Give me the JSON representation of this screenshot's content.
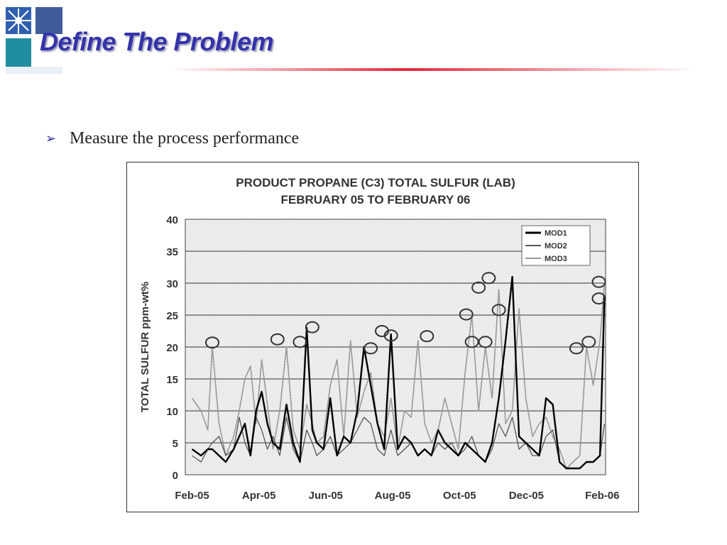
{
  "slide": {
    "title": "Define The Problem",
    "bullet_icon": "arrow-bullet-icon",
    "bullet_text": "Measure the process performance",
    "accent_color": "#3333aa",
    "rule_color": "#e3283c"
  },
  "chart_data": {
    "type": "line",
    "title": "PRODUCT PROPANE (C3) TOTAL SULFUR (LAB)",
    "subtitle": "FEBRUARY 05 TO FEBRUARY 06",
    "ylabel": "TOTAL SULFUR  ppm-wt%",
    "xlabel": "",
    "ylim": [
      0,
      40
    ],
    "yticks": [
      0,
      5,
      10,
      15,
      20,
      25,
      30,
      35,
      40
    ],
    "xticks": [
      "Feb-05",
      "Apr-05",
      "Jun-05",
      "Aug-05",
      "Oct-05",
      "Dec-05",
      "Feb-06"
    ],
    "grid": true,
    "legend_position": "top-right",
    "x_days": [
      0,
      8,
      14,
      18,
      24,
      30,
      37,
      42,
      47,
      52,
      57,
      62,
      67,
      72,
      78,
      84,
      90,
      96,
      102,
      107,
      111,
      117,
      123,
      129,
      135,
      141,
      147,
      153,
      159,
      165,
      171,
      177,
      183,
      189,
      195,
      201,
      207,
      213,
      219,
      225,
      231,
      237,
      243,
      249,
      255,
      261,
      267,
      273,
      279,
      285,
      291,
      297,
      303,
      309,
      315,
      321,
      327,
      333,
      339,
      345,
      351,
      357,
      363,
      367
    ],
    "series": [
      {
        "name": "MOD1",
        "color": "#000000",
        "values": [
          4,
          3,
          4,
          4,
          3,
          2,
          4,
          6,
          8,
          3,
          10,
          13,
          8,
          5,
          4,
          11,
          5,
          2,
          23,
          7,
          5,
          4,
          12,
          3,
          6,
          5,
          10,
          20,
          14,
          8,
          4,
          22,
          4,
          6,
          5,
          3,
          4,
          3,
          7,
          5,
          4,
          3,
          5,
          4,
          3,
          2,
          5,
          12,
          21,
          31,
          6,
          5,
          4,
          3,
          12,
          11,
          2,
          1,
          1,
          1,
          2,
          2,
          3,
          28
        ]
      },
      {
        "name": "MOD2",
        "color": "#555555",
        "values": [
          3,
          2,
          4,
          5,
          6,
          3,
          4,
          9,
          5,
          3,
          9,
          7,
          4,
          6,
          3,
          9,
          4,
          2,
          7,
          5,
          3,
          4,
          6,
          3,
          4,
          5,
          7,
          9,
          8,
          4,
          3,
          7,
          3,
          4,
          5,
          3,
          4,
          3,
          5,
          4,
          5,
          3,
          4,
          6,
          3,
          2,
          4,
          8,
          6,
          9,
          4,
          5,
          3,
          3,
          6,
          7,
          2,
          1,
          1,
          1,
          2,
          2,
          3,
          8
        ]
      },
      {
        "name": "MOD3",
        "color": "#999999",
        "values": [
          12,
          10,
          7,
          20,
          8,
          3,
          6,
          10,
          15,
          17,
          8,
          18,
          11,
          4,
          10,
          20,
          7,
          4,
          11,
          8,
          5,
          6,
          14,
          18,
          6,
          21,
          9,
          13,
          16,
          8,
          6,
          12,
          4,
          10,
          9,
          21,
          8,
          5,
          7,
          12,
          8,
          4,
          16,
          25,
          10,
          20,
          12,
          29,
          8,
          10,
          26,
          12,
          6,
          8,
          9,
          6,
          4,
          1,
          2,
          3,
          20,
          14,
          21,
          30
        ]
      }
    ],
    "annotations": "circled peaks",
    "circled_points": [
      {
        "x_day": 18,
        "y": 20.7
      },
      {
        "x_day": 76,
        "y": 21.2
      },
      {
        "x_day": 96,
        "y": 20.8
      },
      {
        "x_day": 107,
        "y": 23.1
      },
      {
        "x_day": 159,
        "y": 19.8
      },
      {
        "x_day": 169,
        "y": 22.5
      },
      {
        "x_day": 177,
        "y": 21.8
      },
      {
        "x_day": 209,
        "y": 21.7
      },
      {
        "x_day": 244,
        "y": 25.1
      },
      {
        "x_day": 249,
        "y": 20.8
      },
      {
        "x_day": 255,
        "y": 29.3
      },
      {
        "x_day": 261,
        "y": 20.8
      },
      {
        "x_day": 264,
        "y": 30.8
      },
      {
        "x_day": 273,
        "y": 25.8
      },
      {
        "x_day": 342,
        "y": 19.8
      },
      {
        "x_day": 353,
        "y": 20.8
      },
      {
        "x_day": 362,
        "y": 30.2
      },
      {
        "x_day": 362,
        "y": 27.6
      }
    ]
  }
}
